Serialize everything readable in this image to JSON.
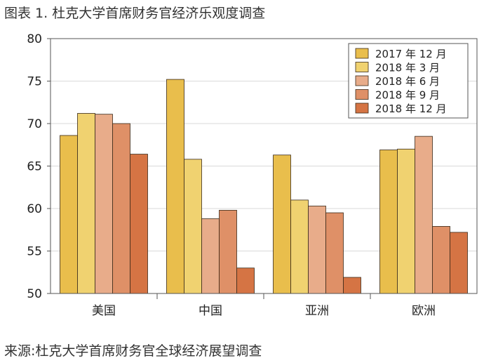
{
  "title": "图表 1. 杜克大学首席财务官经济乐观度调查",
  "source": "来源:杜克大学首席财务官全球经济展望调查",
  "chart_data": {
    "type": "bar",
    "categories": [
      "美国",
      "中国",
      "亚洲",
      "欧洲"
    ],
    "series": [
      {
        "name": "2017 年 12 月",
        "color": "#E9BE4C",
        "values": [
          68.6,
          75.2,
          66.3,
          66.9
        ]
      },
      {
        "name": "2018 年 3 月",
        "color": "#F0D270",
        "values": [
          71.2,
          65.8,
          61.0,
          67.0
        ]
      },
      {
        "name": "2018 年 6 月",
        "color": "#E8AC8A",
        "values": [
          71.1,
          58.8,
          60.3,
          68.5
        ]
      },
      {
        "name": "2018 年 9 月",
        "color": "#DF9067",
        "values": [
          70.0,
          59.8,
          59.5,
          57.9
        ]
      },
      {
        "name": "2018 年 12 月",
        "color": "#D57444",
        "values": [
          66.4,
          53.0,
          51.9,
          57.2
        ]
      }
    ],
    "ylim": [
      50,
      80
    ],
    "yticks": [
      50,
      55,
      60,
      65,
      70,
      75,
      80
    ],
    "ytick_labels": [
      "50",
      "55",
      "60",
      "65",
      "70",
      "75",
      "80"
    ],
    "grid": true,
    "legend_position": "top-right"
  }
}
